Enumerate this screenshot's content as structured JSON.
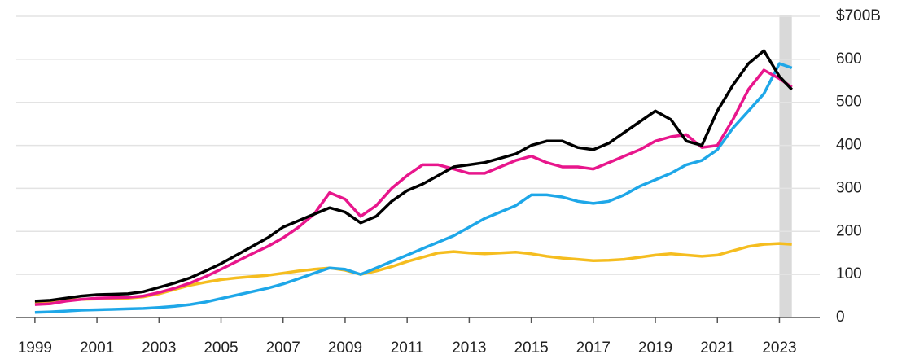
{
  "chart_data": {
    "type": "line",
    "x": [
      1999,
      1999.5,
      2000,
      2000.5,
      2001,
      2001.5,
      2002,
      2002.5,
      2003,
      2003.5,
      2004,
      2004.5,
      2005,
      2005.5,
      2006,
      2006.5,
      2007,
      2007.5,
      2008,
      2008.5,
      2009,
      2009.5,
      2010,
      2010.5,
      2011,
      2011.5,
      2012,
      2012.5,
      2013,
      2013.5,
      2014,
      2014.5,
      2015,
      2015.5,
      2016,
      2016.5,
      2017,
      2017.5,
      2018,
      2018.5,
      2019,
      2019.5,
      2020,
      2020.5,
      2021,
      2021.5,
      2022,
      2022.5,
      2023,
      2023.4
    ],
    "series": [
      {
        "color": "#f5bd1f",
        "values": [
          35,
          36,
          40,
          42,
          43,
          44,
          45,
          48,
          55,
          65,
          75,
          82,
          88,
          92,
          95,
          98,
          103,
          108,
          112,
          115,
          110,
          100,
          108,
          118,
          130,
          140,
          150,
          153,
          150,
          148,
          150,
          152,
          148,
          142,
          138,
          135,
          132,
          133,
          135,
          140,
          145,
          148,
          145,
          142,
          145,
          155,
          165,
          170,
          172,
          170
        ]
      },
      {
        "color": "#1ea7e8",
        "values": [
          12,
          13,
          15,
          17,
          18,
          19,
          20,
          21,
          23,
          26,
          30,
          36,
          44,
          52,
          60,
          68,
          78,
          90,
          103,
          115,
          112,
          100,
          115,
          130,
          145,
          160,
          175,
          190,
          210,
          230,
          245,
          260,
          285,
          285,
          280,
          270,
          265,
          270,
          285,
          305,
          320,
          335,
          355,
          365,
          390,
          440,
          480,
          520,
          590,
          580
        ]
      },
      {
        "color": "#e8168c",
        "values": [
          30,
          32,
          38,
          42,
          45,
          46,
          47,
          50,
          58,
          68,
          80,
          95,
          112,
          130,
          148,
          165,
          185,
          210,
          240,
          290,
          275,
          235,
          260,
          300,
          330,
          355,
          355,
          345,
          335,
          335,
          350,
          365,
          375,
          360,
          350,
          350,
          345,
          360,
          375,
          390,
          410,
          420,
          425,
          395,
          400,
          460,
          530,
          575,
          555,
          535
        ]
      },
      {
        "color": "#000000",
        "values": [
          38,
          40,
          45,
          50,
          53,
          54,
          55,
          60,
          70,
          80,
          92,
          108,
          125,
          145,
          165,
          185,
          210,
          225,
          240,
          255,
          245,
          220,
          235,
          270,
          295,
          310,
          330,
          350,
          355,
          360,
          370,
          380,
          400,
          410,
          410,
          395,
          390,
          405,
          430,
          455,
          480,
          460,
          410,
          400,
          480,
          540,
          590,
          620,
          560,
          530
        ]
      }
    ],
    "xlim": [
      1998.4,
      2024.3
    ],
    "xticks": [
      1999,
      2001,
      2003,
      2005,
      2007,
      2009,
      2011,
      2013,
      2015,
      2017,
      2019,
      2021,
      2023
    ],
    "ylim": [
      0,
      700
    ],
    "yticks": [
      0,
      100,
      200,
      300,
      400,
      500,
      600,
      {
        "value": 700,
        "label": "$700B"
      }
    ],
    "grid": true,
    "shaded_x": [
      2023,
      2023.4
    ],
    "shade_color": "#d9d9d9"
  }
}
